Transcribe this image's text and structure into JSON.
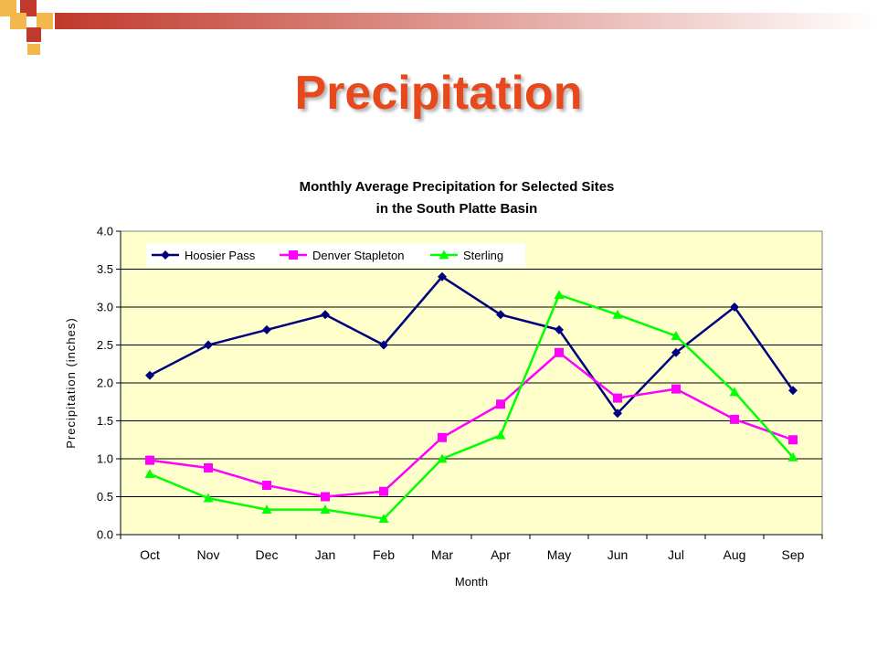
{
  "slide": {
    "title": "Precipitation",
    "accent_colors": [
      "#c0392b",
      "#f2b84b"
    ]
  },
  "chart_data": {
    "type": "line",
    "title_lines": [
      "Monthly Average Precipitation for Selected Sites",
      "in the South Platte Basin"
    ],
    "xlabel": "Month",
    "ylabel": "Precipitation (inches)",
    "categories": [
      "Oct",
      "Nov",
      "Dec",
      "Jan",
      "Feb",
      "Mar",
      "Apr",
      "May",
      "Jun",
      "Jul",
      "Aug",
      "Sep"
    ],
    "ylim": [
      0,
      4
    ],
    "ytick_labels": [
      "0.0",
      "0.5",
      "1.0",
      "1.5",
      "2.0",
      "2.5",
      "3.0",
      "3.5",
      "4.0"
    ],
    "grid": "horizontal",
    "legend_position": "top-left",
    "plot_background": "#ffffcc",
    "series": [
      {
        "name": "Hoosier Pass",
        "color": "#00007f",
        "marker": "diamond",
        "values": [
          2.1,
          2.5,
          2.7,
          2.9,
          2.5,
          3.4,
          2.9,
          2.7,
          1.6,
          2.4,
          3.0,
          1.9
        ]
      },
      {
        "name": "Denver Stapleton",
        "color": "#ff00ff",
        "marker": "square",
        "values": [
          0.98,
          0.88,
          0.65,
          0.5,
          0.57,
          1.28,
          1.72,
          2.4,
          1.8,
          1.92,
          1.52,
          1.25
        ]
      },
      {
        "name": "Sterling",
        "color": "#00ff00",
        "marker": "triangle",
        "values": [
          0.8,
          0.48,
          0.33,
          0.33,
          0.21,
          1.0,
          1.31,
          3.16,
          2.9,
          2.62,
          1.88,
          1.02
        ]
      }
    ]
  }
}
